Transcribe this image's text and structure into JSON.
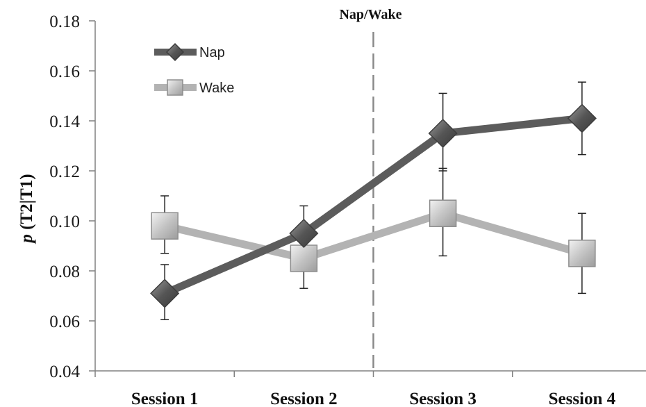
{
  "chart_data": {
    "type": "line",
    "title": "",
    "xlabel": "",
    "ylabel_italic": "p",
    "ylabel_rest": " (T2|T1)",
    "categories": [
      "Session 1",
      "Session 2",
      "Session 3",
      "Session 4"
    ],
    "ylim": [
      0.04,
      0.18
    ],
    "yticks": [
      "0.04",
      "0.06",
      "0.08",
      "0.10",
      "0.12",
      "0.14",
      "0.16",
      "0.18"
    ],
    "annotation": "Nap/Wake",
    "legend": "top-left",
    "grid": false,
    "series": [
      {
        "name": "Nap",
        "marker": "diamond",
        "color": "#5c5c5c",
        "values": [
          0.071,
          0.095,
          0.135,
          0.141
        ],
        "err_low": [
          0.0605,
          0.0855,
          0.12,
          0.1265
        ],
        "err_high": [
          0.0825,
          0.106,
          0.151,
          0.1555
        ]
      },
      {
        "name": "Wake",
        "marker": "square",
        "color": "#b3b3b3",
        "values": [
          0.098,
          0.085,
          0.103,
          0.087
        ],
        "err_low": [
          0.087,
          0.073,
          0.086,
          0.071
        ],
        "err_high": [
          0.11,
          0.096,
          0.121,
          0.103
        ]
      }
    ]
  }
}
